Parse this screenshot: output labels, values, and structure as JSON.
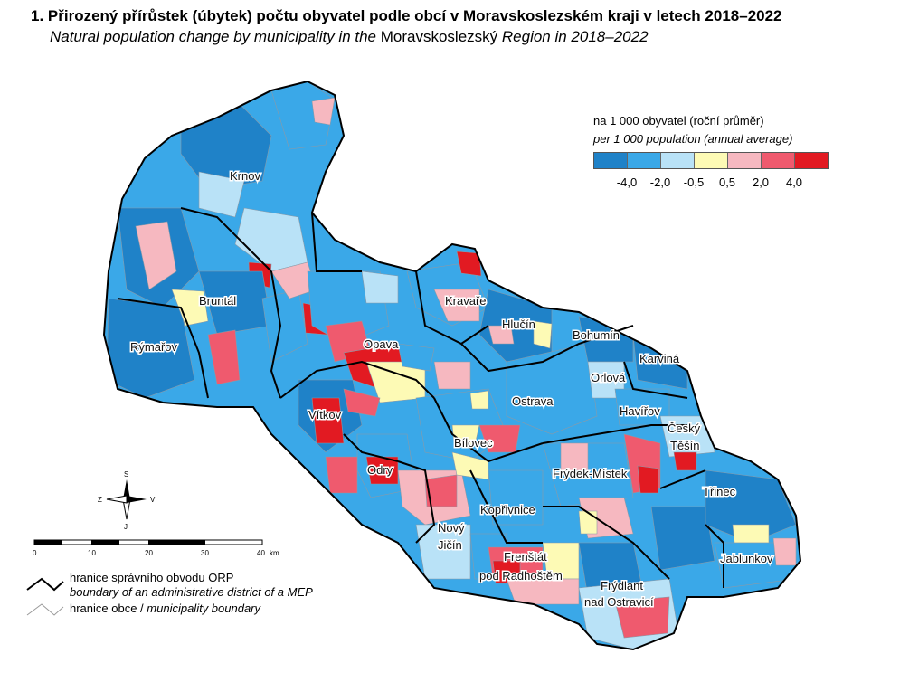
{
  "title": "1. Přirozený přírůstek (úbytek) počtu obyvatel podle obcí v Moravskoslezském kraji v letech 2018–2022",
  "subtitle_a": "Natural population change by municipality in the ",
  "subtitle_b": "Moravskoslezský",
  "subtitle_c": " Region in 2018–2022",
  "legend": {
    "title": "na 1 000 obyvatel (roční průměr)",
    "title_en": "per 1 000 population (annual average)",
    "colors": [
      "#1f82c8",
      "#3aa8e8",
      "#b9e2f7",
      "#fdfab5",
      "#f6b8c0",
      "#ef5a6e",
      "#e21a22"
    ],
    "ticks": [
      "-4,0",
      "-2,0",
      "-0,5",
      "0,5",
      "2,0",
      "4,0"
    ]
  },
  "districts": [
    {
      "name": "Krnov"
    },
    {
      "name": "Bruntál"
    },
    {
      "name": "Rýmařov"
    },
    {
      "name": "Opava"
    },
    {
      "name": "Kravaře"
    },
    {
      "name": "Hlučín"
    },
    {
      "name": "Bohumín"
    },
    {
      "name": "Karviná"
    },
    {
      "name": "Orlová"
    },
    {
      "name": "Ostrava"
    },
    {
      "name": "Havířov"
    },
    {
      "name": "Český"
    },
    {
      "name": "Těšín"
    },
    {
      "name": "Vítkov"
    },
    {
      "name": "Bílovec"
    },
    {
      "name": "Odry"
    },
    {
      "name": "Frýdek-Místek"
    },
    {
      "name": "Třinec"
    },
    {
      "name": "Kopřivnice"
    },
    {
      "name": "Nový"
    },
    {
      "name": "Jičín"
    },
    {
      "name": "Frenštát"
    },
    {
      "name": "pod Radhoštěm"
    },
    {
      "name": "Frýdlant"
    },
    {
      "name": "nad Ostravicí"
    },
    {
      "name": "Jablunkov"
    }
  ],
  "scale": {
    "ticks": [
      "0",
      "10",
      "20",
      "30",
      "40"
    ],
    "unit": "km"
  },
  "compass": {
    "north": "S",
    "south": "J",
    "east": "V",
    "west": "Z"
  },
  "boundary_legend": {
    "orp_cz": "hranice správního obvodu ORP",
    "orp_en": "boundary of an administrative district of a MEP",
    "municipality_cz": "hranice obce / ",
    "municipality_en": "municipality boundary"
  }
}
